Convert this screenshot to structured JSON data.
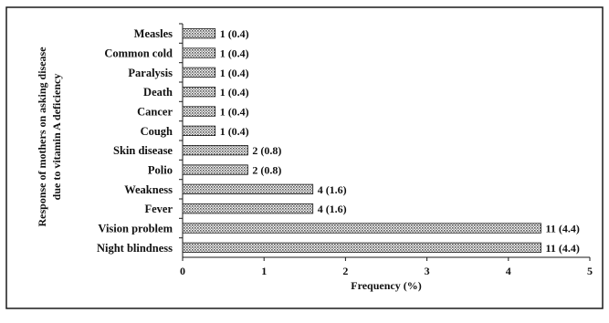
{
  "chart_data": {
    "type": "bar",
    "orientation": "horizontal",
    "categories": [
      "Measles",
      "Common cold",
      "Paralysis",
      "Death",
      "Cancer",
      "Cough",
      "Skin disease",
      "Polio",
      "Weakness",
      "Fever",
      "Vision problem",
      "Night blindness"
    ],
    "values": [
      0.4,
      0.4,
      0.4,
      0.4,
      0.4,
      0.4,
      0.8,
      0.8,
      1.6,
      1.6,
      4.4,
      4.4
    ],
    "data_labels": [
      "1 (0.4)",
      "1 (0.4)",
      "1 (0.4)",
      "1 (0.4)",
      "1 (0.4)",
      "1 (0.4)",
      "2 (0.8)",
      "2 (0.8)",
      "4 (1.6)",
      "4 (1.6)",
      "11 (4.4)",
      "11 (4.4)"
    ],
    "xlabel": "Frequency (%)",
    "ylabel_lines": [
      "Response of mothers on asking disease",
      "due to vitamin A deficiency"
    ],
    "xlim": [
      0,
      5
    ],
    "xticks": [
      "0",
      "1",
      "2",
      "3",
      "4",
      "5"
    ],
    "bar_pattern": "hatched",
    "bar_fill": "#a6a6a6",
    "bar_stroke": "#1a1a1a",
    "border_color": "#1a1a1a",
    "grid": false
  }
}
